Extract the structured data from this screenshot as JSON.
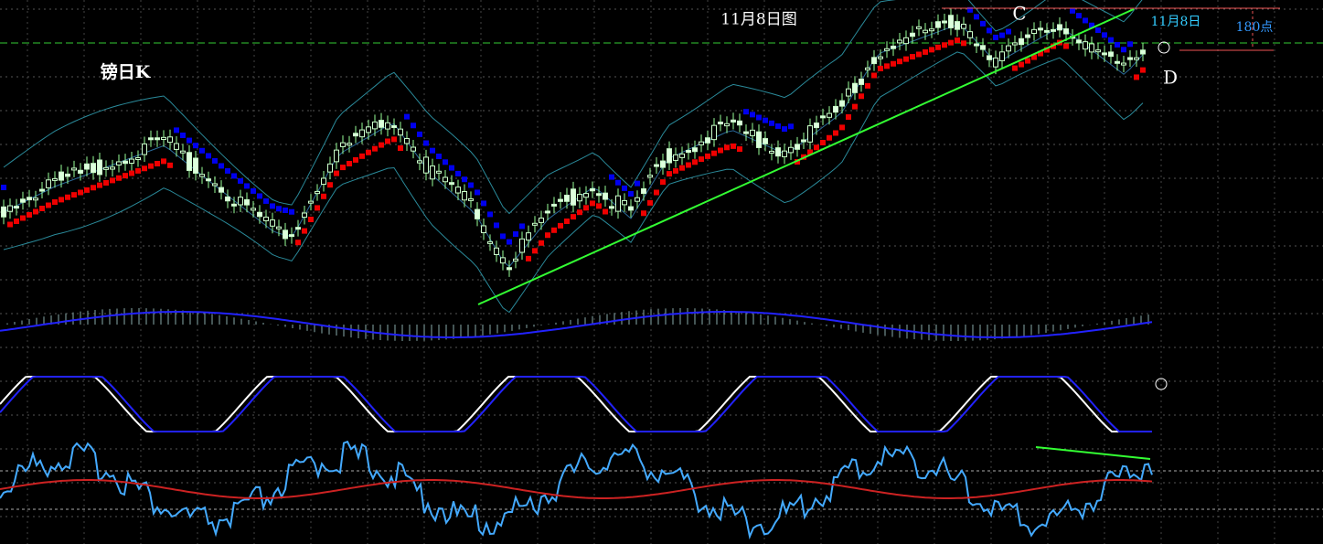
{
  "header": {
    "title": "11月8日图",
    "symbol": "镑日K"
  },
  "annotations": {
    "point_c": "C",
    "point_d": "D",
    "date_label": "11月8日",
    "range_label": "180点"
  }
}
